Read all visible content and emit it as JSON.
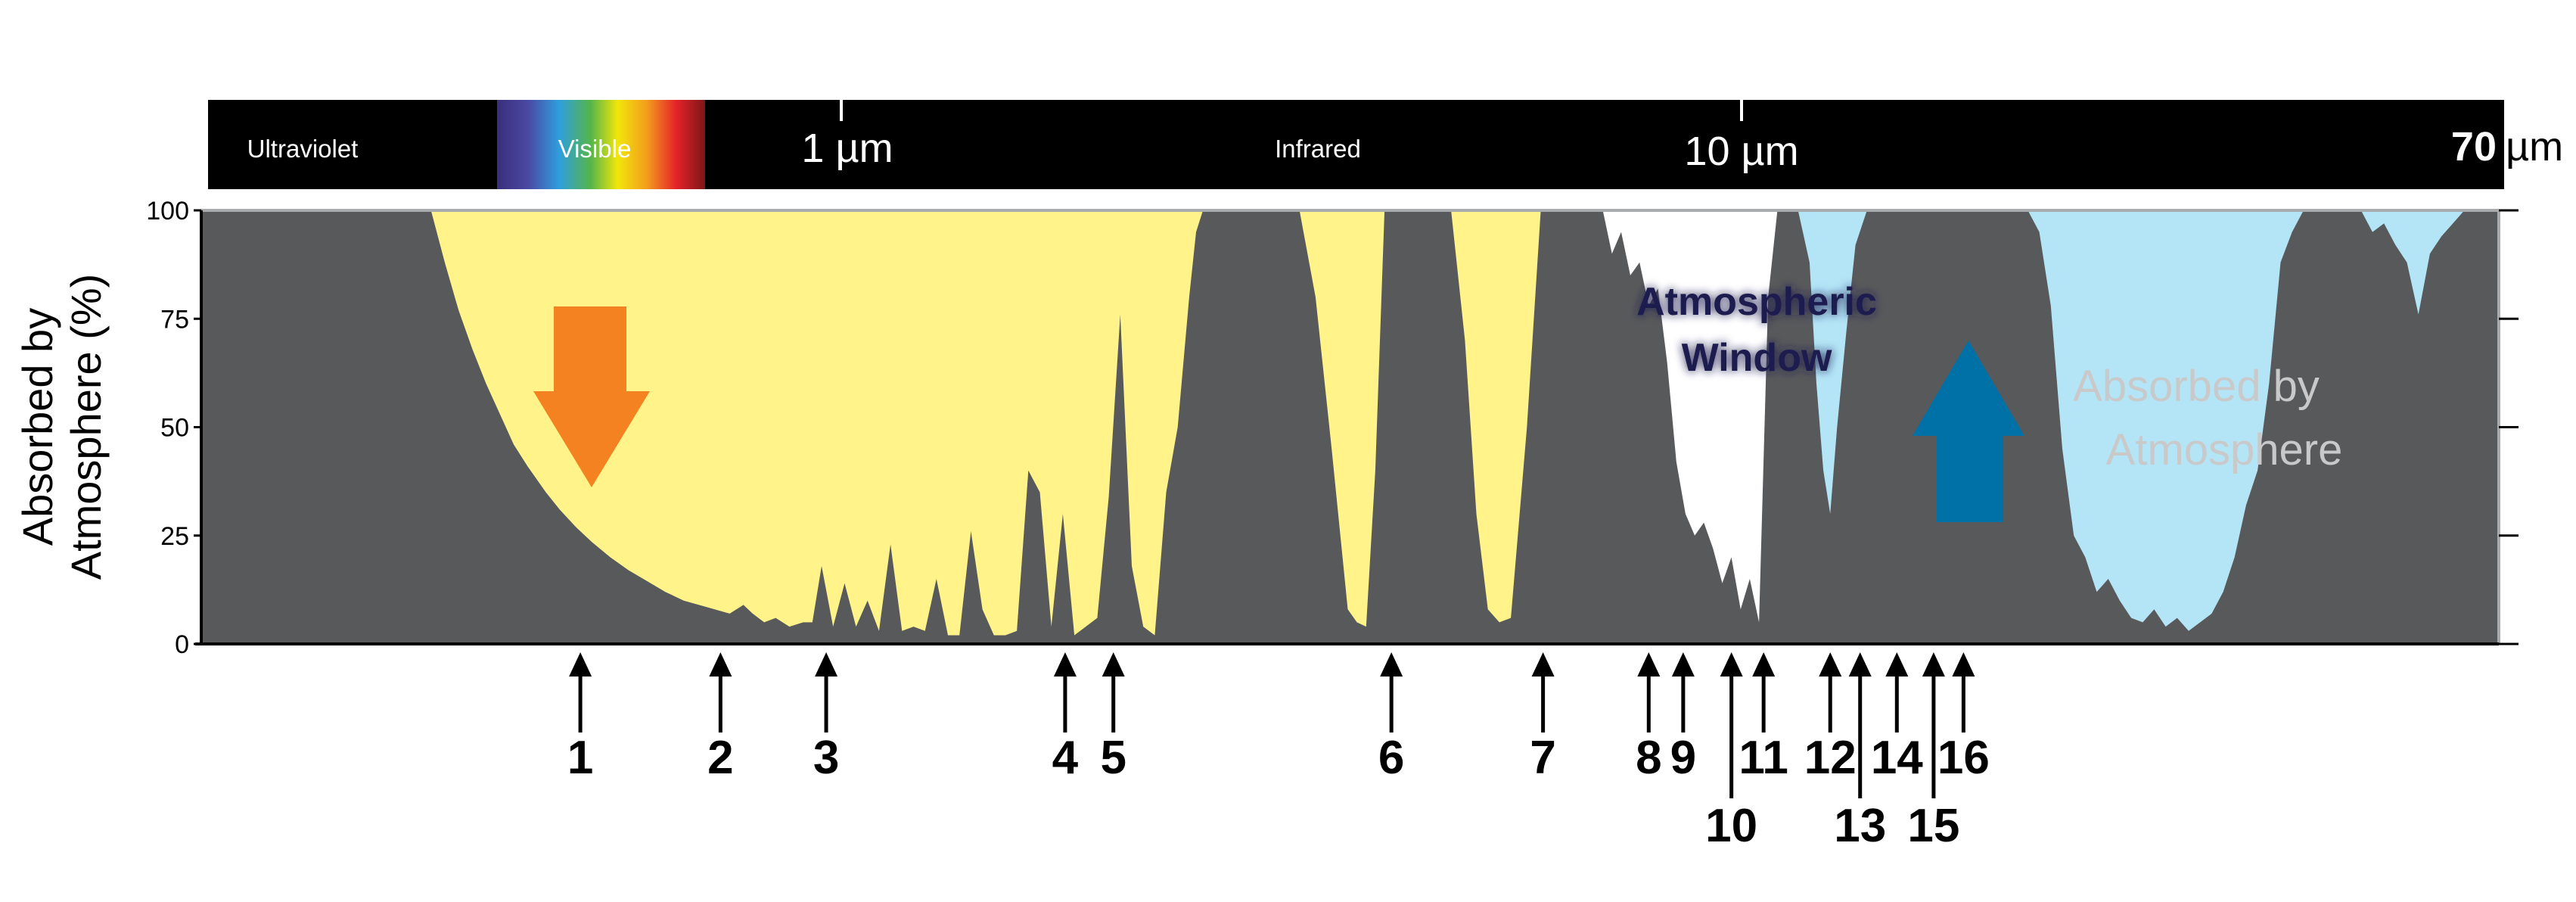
{
  "chart_data": {
    "type": "area",
    "xlabel": "",
    "ylabel": "Absorbed by Atmosphere (%)",
    "ylabel_lines": [
      "Absorbed by",
      "Atmosphere (%)"
    ],
    "ylim": [
      0,
      100
    ],
    "yticks": [
      "100",
      "75",
      "50",
      "25",
      "0"
    ],
    "band_labels": {
      "uv": "Ultraviolet",
      "visible": "Visible",
      "ir": "Infrared"
    },
    "wavelength_ticks": [
      "1 µm",
      "10 µm",
      "70"
    ],
    "wavelength_unit": "µm",
    "annotations": {
      "window_line1": "Atmospheric",
      "window_line2": "Window",
      "absorbed_line1": "Absorbed by",
      "absorbed_line2": "Atmosphere"
    },
    "bands": [
      {
        "name": "visible-transmission",
        "color": "#fff38a",
        "x": [
          0.1,
          0.106,
          0.112,
          0.118,
          0.124,
          0.13,
          0.136,
          0.142,
          0.15,
          0.156,
          0.163,
          0.17,
          0.178,
          0.186,
          0.194,
          0.202,
          0.21,
          0.22,
          0.23,
          0.236,
          0.24,
          0.245,
          0.25,
          0.256,
          0.262,
          0.266,
          0.27,
          0.275,
          0.28,
          0.285,
          0.29,
          0.295,
          0.3,
          0.305,
          0.31,
          0.315,
          0.32,
          0.325,
          0.33,
          0.335,
          0.34,
          0.345,
          0.35,
          0.355,
          0.36,
          0.365,
          0.37,
          0.375,
          0.38,
          0.385,
          0.39,
          0.395,
          0.4,
          0.405,
          0.41,
          0.415,
          0.42,
          0.425,
          0.43,
          0.433,
          0.436
        ],
        "y": [
          100,
          88,
          77,
          68,
          60,
          53,
          46,
          41,
          35,
          31,
          27,
          23.5,
          20,
          17,
          14.5,
          12,
          10,
          8.5,
          7,
          9,
          7,
          5,
          6,
          4,
          5,
          5,
          18,
          4,
          14,
          4,
          10,
          3,
          23,
          3,
          4,
          3,
          15,
          2,
          2,
          26,
          8,
          2,
          2,
          3,
          40,
          35,
          4,
          30,
          2,
          4,
          6,
          34,
          76,
          18,
          4,
          2,
          35,
          50,
          80,
          95,
          100
        ]
      },
      {
        "name": "nir-transmission-a",
        "color": "#fff38a",
        "x": [
          0.478,
          0.485,
          0.492,
          0.499,
          0.503,
          0.507,
          0.511,
          0.515
        ],
        "y": [
          100,
          80,
          45,
          8,
          5,
          4,
          40,
          100
        ]
      },
      {
        "name": "nir-transmission-b",
        "color": "#fff38a",
        "x": [
          0.544,
          0.55,
          0.555,
          0.56,
          0.565,
          0.57,
          0.577,
          0.583
        ],
        "y": [
          100,
          70,
          30,
          8,
          5,
          6,
          50,
          100
        ]
      },
      {
        "name": "ir-white-band",
        "color": "#ffffff",
        "x": [
          0.61,
          0.614,
          0.618,
          0.622,
          0.626,
          0.63,
          0.634,
          0.638,
          0.642,
          0.646,
          0.65,
          0.654,
          0.658,
          0.662,
          0.666,
          0.67,
          0.674,
          0.678,
          0.682,
          0.686
        ],
        "y": [
          100,
          90,
          95,
          85,
          88,
          78,
          82,
          65,
          42,
          30,
          25,
          28,
          22,
          14,
          20,
          8,
          15,
          5,
          80,
          100
        ]
      },
      {
        "name": "ir-cyan-band-1",
        "color": "#b3e5f7",
        "x": [
          0.695,
          0.7,
          0.703,
          0.706,
          0.709,
          0.712,
          0.716,
          0.72,
          0.725
        ],
        "y": [
          100,
          88,
          60,
          40,
          30,
          50,
          72,
          92,
          100
        ]
      },
      {
        "name": "ir-cyan-band-2",
        "color": "#b3e5f7",
        "x": [
          0.795,
          0.8,
          0.805,
          0.81,
          0.815,
          0.82,
          0.825,
          0.83,
          0.835,
          0.84,
          0.845,
          0.85,
          0.855,
          0.86,
          0.865,
          0.87,
          0.875,
          0.88,
          0.885,
          0.89,
          0.895,
          0.9,
          0.905,
          0.91,
          0.915
        ],
        "y": [
          100,
          95,
          78,
          45,
          25,
          20,
          12,
          15,
          10,
          6,
          5,
          8,
          4,
          6,
          3,
          5,
          7,
          12,
          20,
          32,
          40,
          60,
          88,
          95,
          100
        ]
      },
      {
        "name": "ir-cyan-band-3",
        "color": "#b3e5f7",
        "x": [
          0.94,
          0.945,
          0.95,
          0.955,
          0.96,
          0.965,
          0.97,
          0.975,
          0.98,
          0.985
        ],
        "y": [
          100,
          95,
          97,
          92,
          88,
          76,
          90,
          94,
          97,
          100
        ]
      }
    ],
    "markers": [
      "1",
      "2",
      "3",
      "4",
      "5",
      "6",
      "7",
      "8",
      "9",
      "10",
      "11",
      "12",
      "13",
      "14",
      "15",
      "16"
    ],
    "marker_x": [
      0.165,
      0.226,
      0.272,
      0.376,
      0.397,
      0.518,
      0.584,
      0.63,
      0.645,
      0.666,
      0.68,
      0.709,
      0.722,
      0.738,
      0.754,
      0.767
    ],
    "marker_tall": [
      false,
      false,
      false,
      false,
      false,
      false,
      false,
      false,
      false,
      true,
      false,
      false,
      true,
      false,
      true,
      false
    ]
  },
  "colors": {
    "plot_bg": "#58595b",
    "yellow": "#fff38a",
    "cyan": "#b3e5f7",
    "orange_arrow": "#f58220",
    "blue_arrow": "#0071a7",
    "window_text": "#1c1a4f",
    "absorbed_text": "#c9c9c9"
  }
}
